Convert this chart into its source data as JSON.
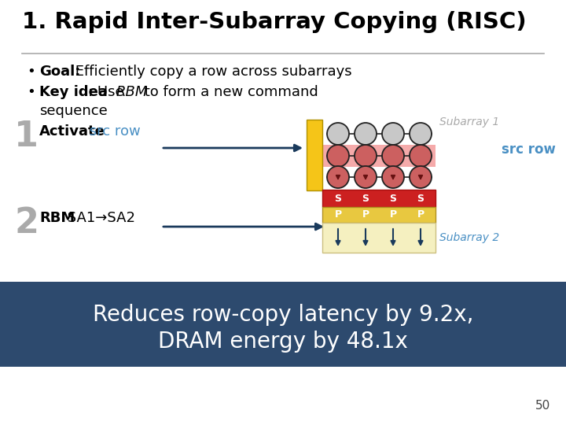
{
  "title": "1. Rapid Inter-Subarray Copying (RISC)",
  "bullet1_bold": "Goal:",
  "bullet1_rest": " Efficiently copy a row across subarrays",
  "bullet2_bold": "Key idea",
  "bullet2_rest": ": Use ",
  "bullet2_italic": "RBM",
  "bullet2_rest2": " to form a new command",
  "bullet2_cont": "sequence",
  "step1_num": "1",
  "step1_bold": "Activate",
  "step1_cyan": " src row",
  "step2_num": "2",
  "step2_bold": "RBM",
  "step2_rest": " SA1→SA2",
  "subarray1_label": "Subarray 1",
  "subarray2_label": "Subarray 2",
  "src_row_label": "src row",
  "bottom_text1": "Reduces row-copy latency by 9.2x,",
  "bottom_text2": "DRAM energy by 48.1x",
  "page_num": "50",
  "bg_color": "#ffffff",
  "bottom_bg": "#2d4a6e",
  "title_color": "#000000",
  "text_color": "#000000",
  "cyan_color": "#4a90c4",
  "subarray1_color": "#aaaaaa",
  "subarray2_color": "#4a90c4",
  "src_row_color": "#4a90c4",
  "step_num_color": "#aaaaaa",
  "arrow_color": "#1a3a5c",
  "yellow_bar": "#f5c518",
  "pink_row_bg": "#f5aaaa",
  "red_sa_bg": "#cc2020",
  "yellow_pa_bg": "#e8c840",
  "yellow_sub2_bg": "#f5f0c0",
  "cell_gray": "#c8c8c8",
  "cell_pink": "#cc6060",
  "cell_outline": "#222222",
  "wire_color": "#222222",
  "sa_border": "#aa1010",
  "pa_border": "#b09020"
}
